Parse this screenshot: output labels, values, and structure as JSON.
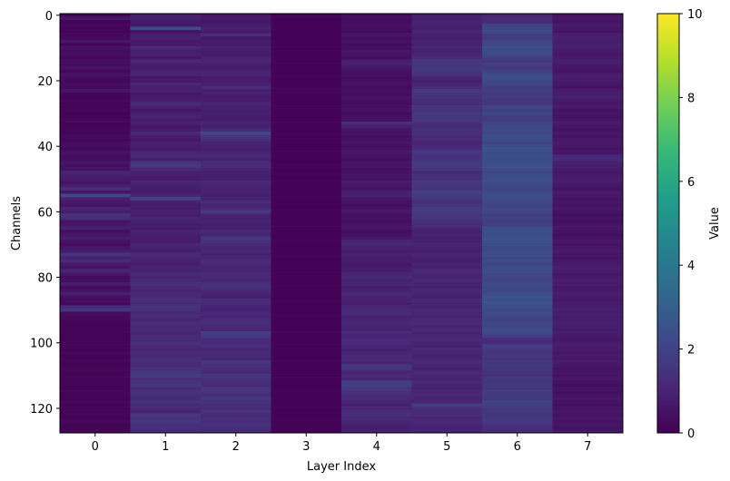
{
  "chart_data": {
    "type": "heatmap",
    "title": "",
    "xlabel": "Layer Index",
    "ylabel": "Channels",
    "x_ticks": [
      "0",
      "1",
      "2",
      "3",
      "4",
      "5",
      "6",
      "7"
    ],
    "y_ticks": [
      "0",
      "20",
      "40",
      "60",
      "80",
      "100",
      "120"
    ],
    "n_rows": 128,
    "n_cols": 8,
    "y_range": [
      0,
      127
    ],
    "x_range": [
      0,
      7
    ],
    "y_axis_inverted": true,
    "colormap": "viridis",
    "colorbar": {
      "label": "Value",
      "range": [
        0,
        10
      ],
      "ticks": [
        "0",
        "2",
        "4",
        "6",
        "8",
        "10"
      ],
      "colors": [
        "#440154",
        "#482878",
        "#3e4989",
        "#31688e",
        "#26828e",
        "#1f9e89",
        "#35b779",
        "#6ece58",
        "#b5de2b",
        "#fde725"
      ]
    },
    "columns": [
      {
        "layer": 0,
        "values": [
          0.15,
          0.6,
          0.1,
          0.2,
          0.15,
          0.1,
          0.2,
          0.25,
          0.6,
          0.15,
          0.5,
          0.3,
          0.4,
          0.2,
          0.35,
          0.3,
          0.5,
          0.2,
          0.45,
          0.3,
          0.2,
          0.3,
          0.25,
          0.6,
          0.15,
          0.1,
          0.2,
          0.15,
          0.1,
          0.2,
          0.1,
          0.15,
          0.2,
          0.1,
          0.15,
          0.2,
          0.1,
          0.25,
          0.15,
          0.3,
          0.4,
          0.2,
          0.5,
          0.3,
          0.35,
          0.6,
          0.4,
          0.5,
          1.0,
          0.9,
          0.7,
          0.5,
          0.8,
          1.3,
          0.6,
          2.2,
          0.9,
          0.7,
          0.5,
          1.0,
          0.8,
          1.4,
          1.3,
          0.5,
          0.6,
          0.9,
          0.4,
          0.6,
          0.8,
          0.5,
          0.3,
          0.6,
          0.8,
          1.5,
          0.9,
          1.2,
          0.7,
          0.5,
          1.0,
          0.6,
          0.3,
          0.4,
          0.7,
          0.3,
          0.5,
          0.9,
          0.4,
          0.3,
          0.2,
          1.1,
          1.5,
          0.3,
          0.2,
          0.2,
          0.15,
          0.1,
          0.1,
          0.15,
          0.1,
          0.1,
          0.15,
          0.1,
          0.1,
          0.2,
          0.1,
          0.15,
          0.1,
          0.1,
          0.2,
          0.1,
          0.1,
          0.15,
          0.1,
          0.1,
          0.1,
          0.15,
          0.1,
          0.1,
          0.2,
          0.1,
          0.1,
          0.1,
          0.15,
          0.1,
          0.2,
          0.1,
          0.1,
          0.15
        ]
      },
      {
        "layer": 1,
        "values": [
          0.8,
          0.9,
          0.7,
          0.6,
          2.4,
          0.5,
          0.8,
          0.9,
          0.6,
          0.7,
          1.1,
          0.8,
          0.9,
          0.6,
          1.2,
          0.8,
          0.7,
          0.9,
          1.0,
          0.6,
          0.7,
          1.1,
          0.8,
          0.9,
          0.6,
          0.7,
          0.8,
          1.2,
          0.9,
          0.6,
          0.8,
          1.0,
          0.7,
          0.9,
          0.6,
          0.7,
          1.1,
          0.8,
          0.6,
          0.9,
          0.8,
          0.7,
          1.0,
          1.2,
          0.8,
          1.5,
          1.6,
          1.1,
          0.9,
          0.8,
          0.7,
          1.0,
          0.9,
          0.8,
          0.7,
          1.0,
          2.0,
          0.9,
          0.8,
          0.7,
          0.9,
          0.8,
          1.0,
          0.9,
          0.8,
          0.7,
          1.0,
          0.9,
          0.8,
          0.7,
          1.0,
          0.9,
          0.8,
          1.1,
          1.0,
          0.9,
          0.8,
          1.0,
          0.9,
          1.1,
          1.0,
          1.2,
          1.3,
          1.1,
          1.0,
          1.2,
          1.1,
          1.3,
          1.2,
          1.4,
          1.3,
          1.1,
          1.2,
          1.0,
          1.3,
          1.1,
          1.2,
          1.0,
          1.1,
          1.2,
          1.3,
          1.1,
          1.0,
          1.2,
          1.1,
          1.3,
          1.2,
          1.1,
          1.4,
          1.6,
          1.7,
          1.3,
          1.5,
          1.6,
          1.2,
          1.4,
          1.3,
          1.1,
          1.5,
          1.2,
          1.1,
          1.0,
          1.6,
          1.4,
          1.5,
          1.3,
          1.4,
          1.2
        ]
      },
      {
        "layer": 2,
        "values": [
          0.6,
          0.7,
          0.6,
          0.8,
          0.9,
          0.7,
          1.3,
          0.6,
          0.8,
          0.7,
          0.9,
          0.8,
          0.7,
          0.9,
          1.0,
          0.8,
          0.7,
          0.9,
          1.0,
          0.8,
          0.7,
          0.9,
          1.1,
          0.8,
          0.9,
          0.7,
          0.8,
          1.0,
          0.9,
          0.8,
          0.9,
          0.7,
          0.8,
          1.0,
          0.9,
          1.2,
          2.1,
          1.5,
          1.3,
          1.0,
          0.9,
          0.8,
          1.0,
          1.1,
          0.9,
          1.2,
          1.1,
          1.0,
          0.9,
          0.8,
          0.9,
          1.1,
          1.0,
          0.9,
          1.0,
          0.8,
          0.9,
          1.2,
          1.0,
          1.1,
          1.7,
          1.0,
          0.9,
          1.0,
          0.8,
          0.9,
          1.1,
          1.0,
          1.6,
          1.4,
          1.2,
          1.0,
          1.1,
          0.9,
          1.0,
          1.2,
          1.1,
          0.9,
          1.0,
          1.1,
          1.2,
          1.0,
          1.3,
          1.4,
          1.1,
          1.0,
          0.9,
          1.1,
          1.2,
          1.0,
          0.9,
          1.1,
          1.0,
          1.2,
          1.3,
          1.1,
          1.0,
          1.9,
          1.6,
          1.2,
          1.1,
          1.3,
          1.0,
          1.2,
          1.1,
          1.0,
          1.6,
          1.4,
          1.3,
          1.2,
          1.5,
          1.4,
          1.3,
          1.2,
          1.6,
          1.5,
          1.3,
          1.7,
          1.4,
          1.3,
          1.2,
          1.5,
          1.1,
          1.3,
          1.2,
          1.4,
          1.3,
          1.1
        ]
      },
      {
        "layer": 3,
        "values": [
          0.05,
          0.05,
          0.05,
          0.05,
          0.05,
          0.05,
          0.05,
          0.05,
          0.05,
          0.05,
          0.05,
          0.05,
          0.05,
          0.05,
          0.05,
          0.05,
          0.05,
          0.05,
          0.05,
          0.05,
          0.05,
          0.05,
          0.05,
          0.05,
          0.05,
          0.05,
          0.05,
          0.05,
          0.05,
          0.05,
          0.05,
          0.05,
          0.05,
          0.05,
          0.05,
          0.05,
          0.05,
          0.05,
          0.05,
          0.05,
          0.05,
          0.05,
          0.05,
          0.05,
          0.05,
          0.05,
          0.05,
          0.05,
          0.05,
          0.05,
          0.05,
          0.05,
          0.05,
          0.05,
          0.05,
          0.05,
          0.05,
          0.05,
          0.05,
          0.05,
          0.05,
          0.05,
          0.05,
          0.05,
          0.05,
          0.05,
          0.05,
          0.05,
          0.05,
          0.05,
          0.05,
          0.05,
          0.05,
          0.05,
          0.05,
          0.05,
          0.05,
          0.05,
          0.05,
          0.05,
          0.05,
          0.05,
          0.05,
          0.05,
          0.05,
          0.05,
          0.05,
          0.05,
          0.05,
          0.05,
          0.05,
          0.05,
          0.05,
          0.05,
          0.05,
          0.05,
          0.05,
          0.05,
          0.05,
          0.05,
          0.05,
          0.05,
          0.05,
          0.05,
          0.05,
          0.05,
          0.05,
          0.05,
          0.05,
          0.05,
          0.05,
          0.05,
          0.05,
          0.05,
          0.05,
          0.05,
          0.05,
          0.05,
          0.05,
          0.05,
          0.05,
          0.05,
          0.05,
          0.05,
          0.05,
          0.05,
          0.05,
          0.05
        ]
      },
      {
        "layer": 4,
        "values": [
          0.3,
          0.4,
          0.3,
          0.5,
          0.4,
          0.3,
          0.6,
          0.4,
          0.5,
          0.3,
          0.4,
          0.6,
          0.5,
          0.4,
          0.8,
          0.9,
          0.6,
          0.5,
          0.4,
          0.3,
          0.4,
          0.5,
          0.3,
          0.4,
          0.3,
          0.5,
          0.4,
          0.3,
          0.4,
          0.5,
          0.3,
          0.4,
          0.5,
          1.2,
          0.9,
          0.6,
          0.5,
          0.4,
          0.5,
          0.6,
          0.4,
          0.5,
          0.6,
          0.5,
          0.4,
          0.6,
          0.5,
          0.4,
          0.5,
          0.6,
          0.5,
          0.7,
          0.6,
          0.5,
          0.8,
          0.9,
          0.6,
          0.5,
          0.4,
          0.5,
          0.6,
          0.4,
          0.5,
          0.4,
          0.5,
          0.6,
          0.4,
          0.5,
          0.6,
          1.0,
          1.1,
          0.9,
          0.8,
          0.9,
          0.7,
          0.8,
          0.6,
          0.7,
          0.8,
          1.0,
          1.1,
          0.9,
          1.0,
          0.8,
          0.9,
          1.1,
          1.0,
          0.9,
          0.8,
          1.0,
          1.1,
          1.2,
          0.9,
          1.0,
          1.1,
          1.0,
          0.9,
          1.1,
          1.0,
          1.2,
          1.1,
          1.0,
          0.9,
          1.0,
          1.2,
          1.1,
          1.0,
          1.6,
          1.5,
          1.0,
          1.1,
          1.0,
          1.9,
          1.8,
          1.6,
          1.4,
          1.2,
          1.1,
          1.0,
          0.9,
          1.0,
          1.2,
          1.3,
          1.1,
          1.0,
          0.9,
          0.8,
          0.9
        ]
      },
      {
        "layer": 5,
        "values": [
          0.8,
          0.9,
          1.0,
          0.9,
          0.8,
          1.0,
          0.9,
          0.8,
          1.0,
          0.9,
          1.0,
          0.9,
          1.0,
          1.2,
          1.6,
          1.5,
          1.7,
          1.6,
          1.4,
          1.0,
          0.9,
          1.0,
          1.2,
          1.6,
          1.5,
          1.4,
          1.3,
          1.2,
          1.5,
          1.4,
          1.7,
          1.6,
          1.5,
          1.3,
          1.2,
          1.4,
          1.3,
          1.1,
          1.2,
          1.0,
          1.1,
          1.3,
          1.6,
          1.4,
          1.5,
          1.7,
          1.6,
          1.5,
          1.2,
          1.4,
          1.3,
          1.6,
          1.5,
          1.4,
          2.0,
          1.7,
          1.5,
          1.3,
          1.5,
          1.8,
          1.7,
          1.6,
          1.5,
          1.4,
          1.2,
          1.0,
          0.9,
          1.0,
          0.8,
          0.9,
          1.0,
          0.9,
          0.8,
          1.0,
          0.9,
          0.8,
          1.0,
          0.9,
          1.1,
          1.0,
          0.9,
          1.1,
          1.0,
          0.9,
          1.1,
          1.0,
          0.9,
          1.1,
          1.0,
          0.9,
          1.1,
          1.0,
          0.9,
          1.2,
          1.1,
          1.0,
          1.1,
          0.9,
          1.0,
          1.1,
          1.0,
          0.9,
          1.1,
          1.0,
          0.9,
          1.0,
          1.1,
          1.0,
          0.9,
          1.1,
          1.0,
          0.9,
          1.1,
          1.0,
          0.9,
          1.0,
          1.1,
          1.0,
          1.0,
          1.8,
          1.3,
          1.1,
          1.2,
          1.0,
          1.1,
          1.0,
          0.9,
          1.0
        ]
      },
      {
        "layer": 6,
        "values": [
          1.0,
          1.2,
          1.1,
          2.0,
          2.1,
          2.2,
          1.8,
          1.7,
          2.1,
          2.2,
          2.3,
          2.4,
          2.2,
          1.9,
          1.6,
          1.8,
          1.7,
          2.0,
          2.2,
          2.3,
          2.2,
          2.1,
          1.9,
          1.8,
          1.7,
          1.8,
          1.6,
          1.5,
          2.0,
          1.9,
          2.2,
          1.8,
          1.7,
          2.0,
          2.2,
          2.3,
          2.1,
          2.4,
          2.3,
          2.0,
          2.4,
          2.5,
          2.3,
          2.4,
          2.3,
          2.4,
          2.5,
          2.3,
          2.2,
          2.3,
          2.4,
          2.3,
          2.2,
          2.1,
          2.2,
          2.4,
          2.3,
          2.2,
          2.0,
          2.2,
          2.1,
          1.9,
          2.0,
          1.8,
          1.9,
          2.4,
          2.5,
          2.4,
          2.5,
          2.4,
          2.3,
          2.2,
          2.3,
          2.4,
          2.2,
          2.3,
          2.1,
          2.4,
          2.3,
          2.2,
          2.1,
          2.0,
          2.3,
          2.2,
          2.1,
          2.4,
          2.5,
          2.4,
          2.5,
          2.4,
          2.2,
          2.3,
          2.1,
          2.0,
          2.2,
          2.1,
          2.3,
          2.2,
          1.8,
          1.2,
          1.1,
          1.9,
          1.6,
          1.5,
          1.6,
          1.4,
          1.5,
          1.7,
          1.6,
          1.4,
          1.3,
          1.6,
          1.5,
          1.7,
          1.6,
          1.8,
          1.7,
          1.6,
          2.0,
          1.8,
          1.7,
          1.6,
          1.5,
          1.6,
          1.7,
          1.4,
          1.3,
          1.2
        ]
      },
      {
        "layer": 7,
        "values": [
          0.5,
          0.6,
          0.5,
          0.7,
          0.6,
          0.5,
          0.8,
          0.9,
          0.8,
          0.9,
          0.8,
          0.7,
          0.6,
          0.7,
          0.8,
          0.7,
          0.6,
          0.5,
          0.7,
          0.8,
          0.7,
          0.6,
          0.5,
          0.7,
          0.8,
          0.9,
          0.7,
          0.6,
          0.7,
          0.5,
          0.6,
          0.5,
          0.6,
          0.7,
          0.6,
          0.5,
          0.6,
          0.5,
          0.6,
          0.7,
          0.6,
          0.5,
          0.6,
          1.1,
          1.2,
          0.9,
          0.8,
          0.7,
          0.6,
          0.7,
          0.8,
          0.7,
          0.6,
          0.5,
          0.7,
          0.6,
          0.5,
          0.6,
          0.5,
          0.6,
          0.5,
          0.4,
          0.5,
          0.4,
          0.5,
          0.6,
          0.5,
          0.4,
          0.5,
          0.6,
          0.5,
          0.6,
          0.7,
          0.6,
          0.5,
          0.6,
          0.7,
          0.8,
          0.7,
          0.6,
          0.7,
          0.8,
          0.7,
          0.6,
          0.7,
          0.8,
          0.7,
          0.6,
          0.7,
          0.8,
          0.9,
          0.8,
          0.7,
          0.8,
          0.9,
          0.8,
          0.7,
          0.8,
          0.7,
          0.6,
          0.7,
          0.8,
          0.7,
          0.6,
          0.7,
          0.6,
          0.7,
          0.6,
          0.5,
          0.6,
          0.5,
          0.6,
          0.5,
          0.4,
          0.5,
          0.4,
          0.5,
          0.6,
          0.5,
          0.4,
          0.5,
          0.6,
          0.5,
          0.6,
          0.5,
          0.6,
          0.5,
          0.6
        ]
      }
    ]
  }
}
